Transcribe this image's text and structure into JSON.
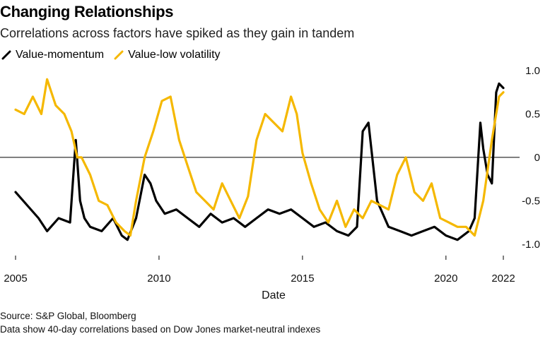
{
  "header": {
    "title": "Changing Relationships",
    "subtitle": "Correlations across factors have spiked as they gain in tandem"
  },
  "footer": {
    "source": "Source: S&P Global, Bloomberg",
    "note": "Data show 40-day correlations based on Dow Jones market-neutral indexes"
  },
  "colors": {
    "value_momentum": "#000000",
    "value_low_volatility": "#f5b800",
    "zero_line": "#000000",
    "axis_text": "#111111"
  },
  "chart_data": {
    "type": "line",
    "title": "Changing Relationships",
    "subtitle": "Correlations across factors have spiked as they gain in tandem",
    "xlabel": "Date",
    "ylabel": "",
    "xlim": [
      2005,
      2022
    ],
    "ylim": [
      -1.05,
      1.0
    ],
    "x_ticks": [
      2005,
      2010,
      2015,
      2020,
      2022
    ],
    "x_tick_labels": [
      "2005",
      "2010",
      "2015",
      "2020",
      "2022"
    ],
    "y_ticks": [
      1.0,
      0.5,
      0,
      -0.5,
      -1.0
    ],
    "y_tick_labels": [
      "1.0",
      "0.5",
      "0",
      "-0.5",
      "-1.0"
    ],
    "grid": false,
    "legend_position": "top-left",
    "series": [
      {
        "name": "Value-momentum",
        "x": [
          2005.0,
          2005.4,
          2005.8,
          2006.1,
          2006.5,
          2006.9,
          2007.1,
          2007.25,
          2007.4,
          2007.6,
          2008.0,
          2008.4,
          2008.7,
          2008.9,
          2009.2,
          2009.5,
          2009.7,
          2009.9,
          2010.2,
          2010.6,
          2011.0,
          2011.4,
          2011.8,
          2012.2,
          2012.6,
          2013.0,
          2013.4,
          2013.8,
          2014.2,
          2014.6,
          2015.0,
          2015.4,
          2015.8,
          2016.2,
          2016.6,
          2016.9,
          2017.1,
          2017.3,
          2017.6,
          2018.0,
          2018.4,
          2018.8,
          2019.2,
          2019.6,
          2020.0,
          2020.4,
          2020.8,
          2021.0,
          2021.2,
          2021.3,
          2021.45,
          2021.6,
          2021.75,
          2021.85,
          2022.0
        ],
        "values": [
          -0.4,
          -0.55,
          -0.7,
          -0.85,
          -0.7,
          -0.75,
          0.2,
          -0.5,
          -0.7,
          -0.8,
          -0.85,
          -0.7,
          -0.9,
          -0.95,
          -0.7,
          -0.2,
          -0.3,
          -0.5,
          -0.65,
          -0.6,
          -0.7,
          -0.8,
          -0.65,
          -0.75,
          -0.7,
          -0.8,
          -0.7,
          -0.6,
          -0.65,
          -0.6,
          -0.7,
          -0.8,
          -0.75,
          -0.85,
          -0.9,
          -0.8,
          0.3,
          0.4,
          -0.5,
          -0.8,
          -0.85,
          -0.9,
          -0.85,
          -0.8,
          -0.9,
          -0.95,
          -0.85,
          -0.7,
          0.4,
          0.1,
          -0.2,
          -0.3,
          0.75,
          0.85,
          0.8
        ]
      },
      {
        "name": "Value-low volatility",
        "x": [
          2005.0,
          2005.3,
          2005.6,
          2005.9,
          2006.1,
          2006.4,
          2006.7,
          2006.95,
          2007.15,
          2007.3,
          2007.6,
          2007.9,
          2008.2,
          2008.5,
          2008.8,
          2009.0,
          2009.2,
          2009.5,
          2009.8,
          2010.1,
          2010.4,
          2010.7,
          2011.0,
          2011.3,
          2011.6,
          2011.9,
          2012.2,
          2012.5,
          2012.8,
          2013.1,
          2013.4,
          2013.7,
          2014.0,
          2014.3,
          2014.6,
          2014.8,
          2015.0,
          2015.3,
          2015.6,
          2015.9,
          2016.2,
          2016.5,
          2016.8,
          2017.1,
          2017.4,
          2017.7,
          2018.0,
          2018.3,
          2018.6,
          2018.9,
          2019.2,
          2019.5,
          2019.8,
          2020.1,
          2020.4,
          2020.7,
          2021.0,
          2021.3,
          2021.6,
          2021.85,
          2022.0
        ],
        "values": [
          0.55,
          0.5,
          0.7,
          0.5,
          0.9,
          0.6,
          0.5,
          0.3,
          0.0,
          0.0,
          -0.2,
          -0.5,
          -0.55,
          -0.75,
          -0.85,
          -0.9,
          -0.5,
          0.0,
          0.3,
          0.65,
          0.7,
          0.2,
          -0.1,
          -0.4,
          -0.5,
          -0.6,
          -0.3,
          -0.5,
          -0.7,
          -0.45,
          0.2,
          0.5,
          0.4,
          0.3,
          0.7,
          0.5,
          0.05,
          -0.3,
          -0.6,
          -0.75,
          -0.5,
          -0.8,
          -0.6,
          -0.7,
          -0.5,
          -0.55,
          -0.6,
          -0.2,
          0.0,
          -0.4,
          -0.5,
          -0.3,
          -0.7,
          -0.75,
          -0.8,
          -0.8,
          -0.9,
          -0.5,
          0.2,
          0.7,
          0.75
        ]
      }
    ]
  }
}
